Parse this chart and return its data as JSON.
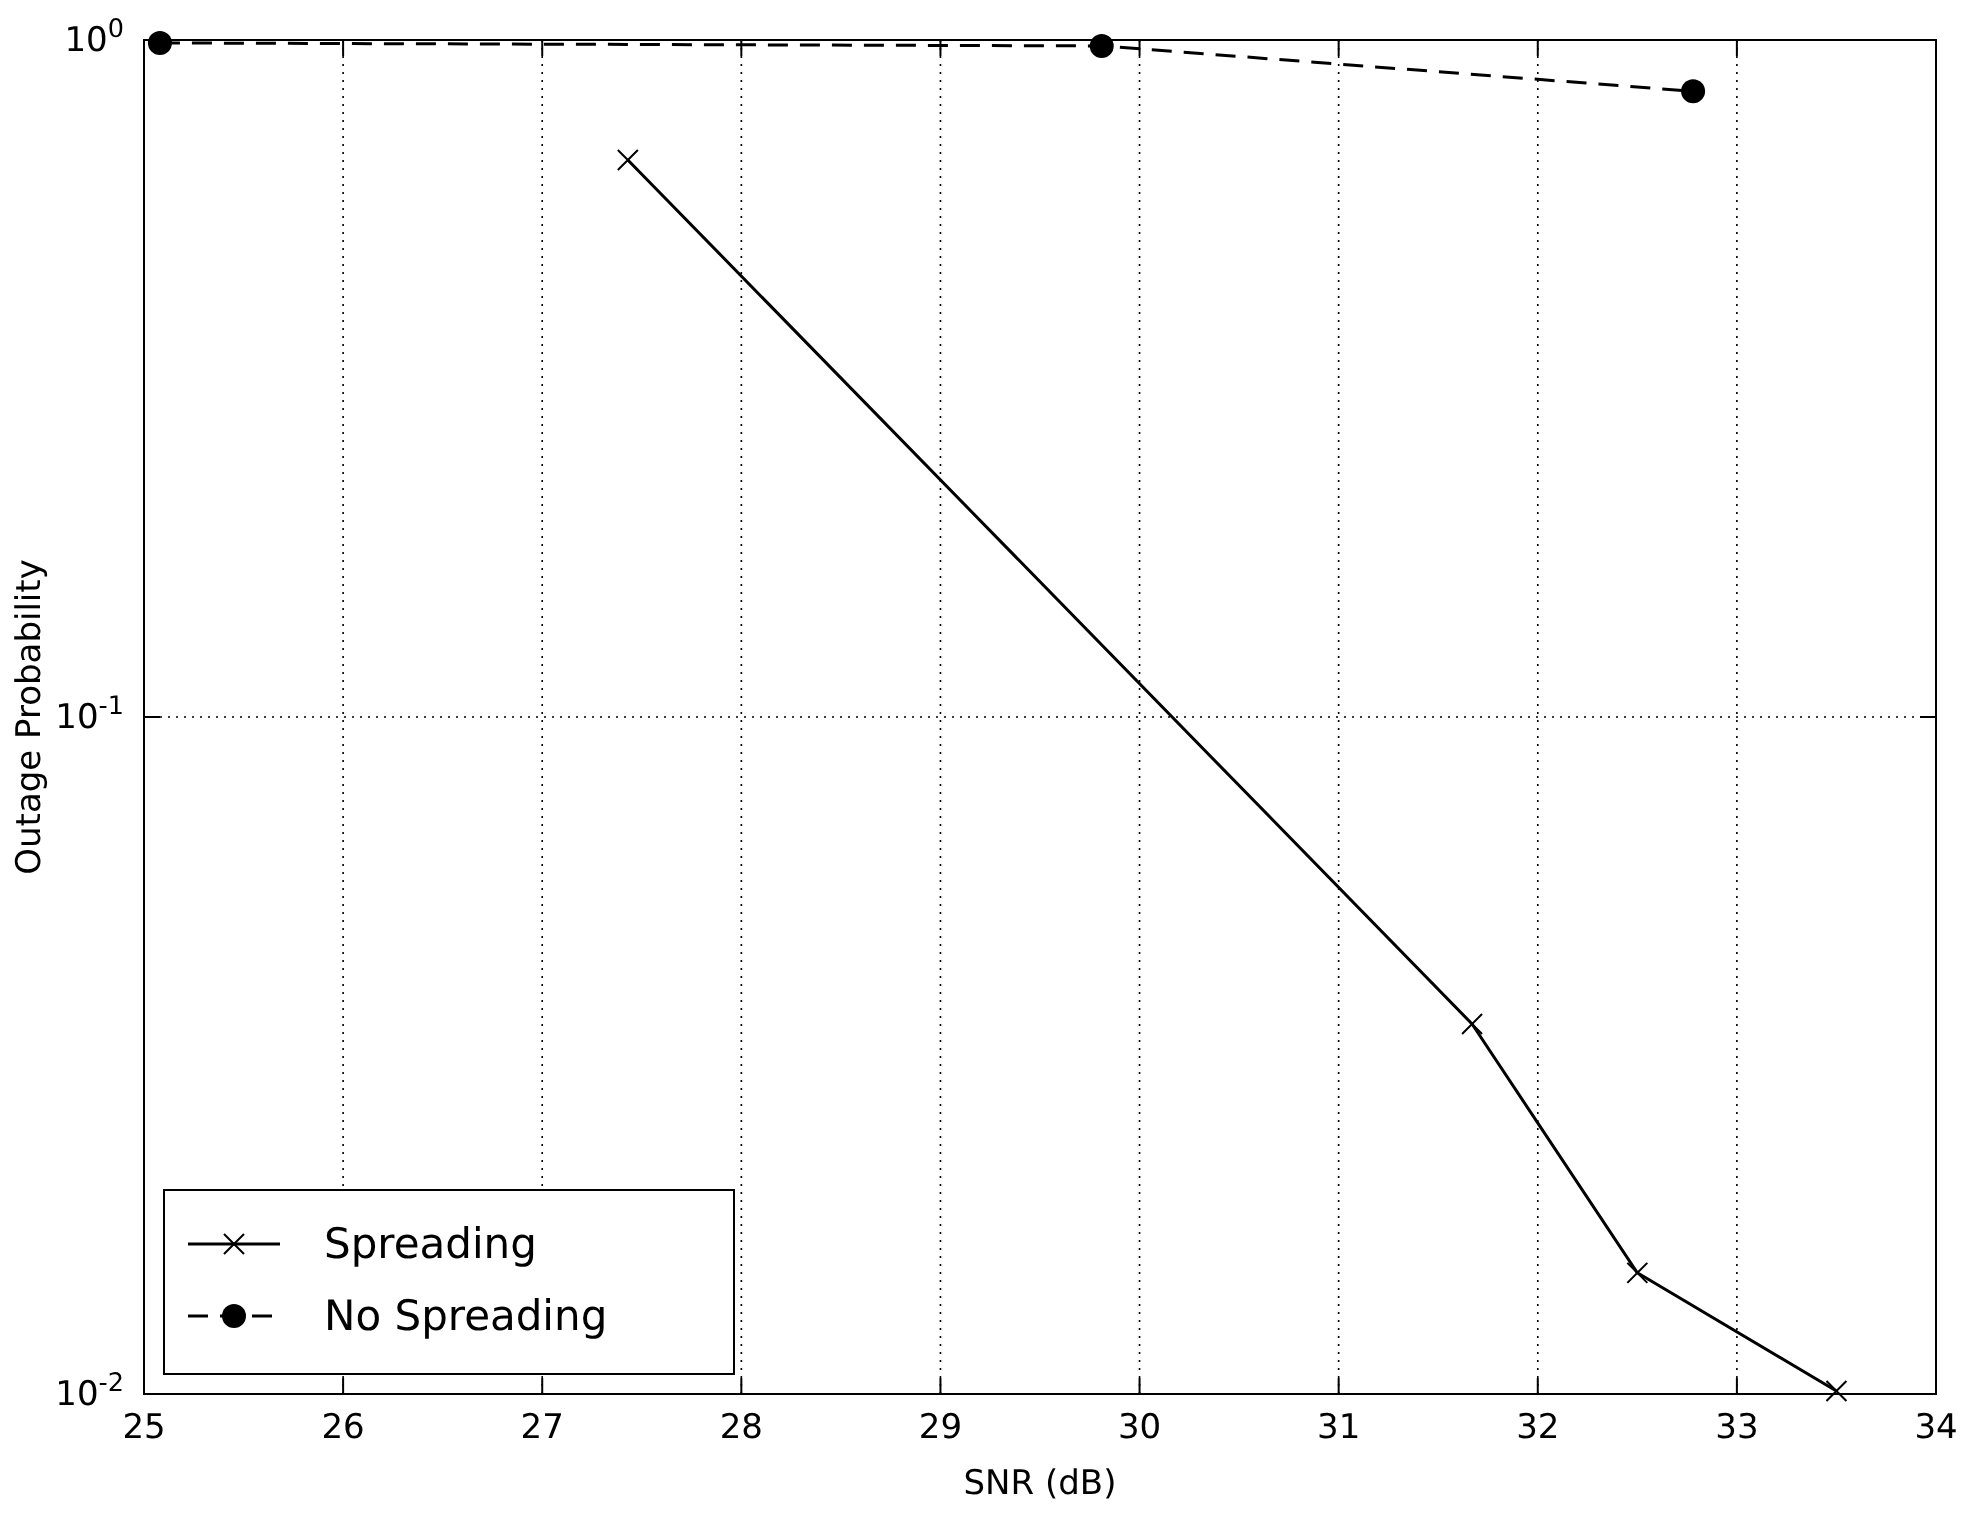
{
  "chart_data": {
    "type": "line",
    "xlabel": "SNR (dB)",
    "ylabel": "Outage Probability",
    "log": "y",
    "grid": true,
    "legend": "bottom left",
    "xlim": [
      25,
      34
    ],
    "xticks": [
      25,
      26,
      27,
      28,
      29,
      30,
      31,
      32,
      33,
      34
    ],
    "ylim": [
      0.01,
      1
    ],
    "yticks": [
      {
        "value": 0.01,
        "label": "10$^{-2}$"
      },
      {
        "value": 0.1,
        "label": "10$^{-1}$"
      },
      {
        "value": 1,
        "label": "10$^{0}$"
      }
    ],
    "series": [
      {
        "name": "Spreading",
        "color": "#000000",
        "marker": "cross",
        "line_style": "solid",
        "x": [
          27.43,
          31.67,
          32.5,
          33.5
        ],
        "values": [
          0.665,
          0.0352,
          0.0151,
          0.0101
        ]
      },
      {
        "name": "No Spreading",
        "color": "#000000",
        "marker": "circle",
        "line_style": "dashed",
        "x": [
          25.08,
          29.81,
          32.78
        ],
        "values": [
          0.99,
          0.98,
          0.84
        ]
      }
    ]
  }
}
